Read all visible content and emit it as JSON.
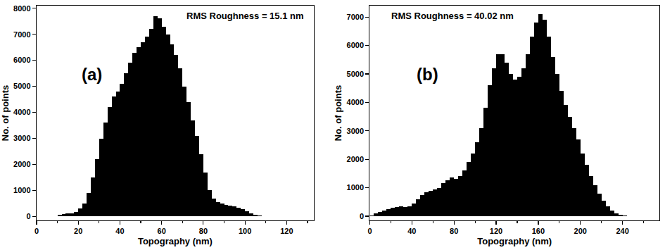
{
  "chart_data": [
    {
      "type": "histogram",
      "x_label": "Topography (nm)",
      "y_label": "No. of points",
      "annotations": [
        "(a)",
        "RMS Roughness = 15.1 nm"
      ],
      "color": "#000000",
      "bins": [
        0,
        2,
        4,
        6,
        8,
        10,
        12,
        14,
        16,
        18,
        20,
        22,
        24,
        26,
        28,
        30,
        32,
        34,
        36,
        38,
        40,
        42,
        44,
        46,
        48,
        50,
        52,
        54,
        56,
        58,
        60,
        62,
        64,
        66,
        68,
        70,
        72,
        74,
        76,
        78,
        80,
        82,
        84,
        86,
        88,
        90,
        92,
        94,
        96,
        98,
        100,
        102,
        104,
        106,
        108,
        110,
        112,
        114,
        116,
        118,
        120,
        122,
        124,
        126,
        128,
        130,
        132
      ],
      "counts": [
        0,
        0,
        0,
        5,
        20,
        60,
        90,
        110,
        130,
        180,
        300,
        500,
        900,
        1500,
        2200,
        3000,
        3600,
        4200,
        4600,
        4800,
        5100,
        5500,
        5900,
        6300,
        6500,
        6700,
        6900,
        7200,
        7700,
        7600,
        7300,
        7000,
        6600,
        6200,
        5700,
        5000,
        4400,
        3700,
        3100,
        2400,
        1700,
        1000,
        700,
        550,
        500,
        450,
        430,
        400,
        350,
        280,
        200,
        120,
        60,
        30,
        15,
        5,
        0,
        0,
        0,
        0,
        0,
        0,
        0,
        0,
        0,
        0
      ],
      "xlim": [
        0,
        133
      ],
      "xticks": [
        0,
        20,
        40,
        60,
        80,
        100,
        120
      ],
      "ylim": [
        -150,
        8100
      ],
      "yticks": [
        0,
        1000,
        2000,
        3000,
        4000,
        5000,
        6000,
        7000,
        8000
      ]
    },
    {
      "type": "histogram",
      "x_label": "Topography (nm)",
      "y_label": "No. of points",
      "annotations": [
        "(b)",
        "RMS Roughness = 40.02 nm"
      ],
      "color": "#000000",
      "bins": [
        0,
        4,
        8,
        12,
        16,
        20,
        24,
        28,
        32,
        36,
        40,
        44,
        48,
        52,
        56,
        60,
        64,
        68,
        72,
        76,
        80,
        84,
        88,
        92,
        96,
        100,
        104,
        108,
        112,
        116,
        120,
        124,
        128,
        132,
        136,
        140,
        144,
        148,
        152,
        156,
        160,
        164,
        168,
        172,
        176,
        180,
        184,
        188,
        192,
        196,
        200,
        204,
        208,
        212,
        216,
        220,
        224,
        228,
        232,
        236,
        240,
        244,
        248,
        252,
        256,
        260,
        264,
        268,
        272
      ],
      "counts": [
        30,
        100,
        150,
        200,
        250,
        300,
        330,
        350,
        330,
        350,
        450,
        600,
        750,
        850,
        900,
        950,
        1000,
        1150,
        1250,
        1350,
        1300,
        1400,
        1600,
        1900,
        2200,
        2600,
        3100,
        3800,
        4600,
        5200,
        5700,
        5700,
        5400,
        5000,
        4800,
        4900,
        5200,
        5700,
        6300,
        6800,
        7100,
        6900,
        6300,
        5600,
        5000,
        4400,
        3900,
        3500,
        3100,
        2700,
        2200,
        1800,
        1400,
        1100,
        800,
        550,
        350,
        200,
        100,
        50,
        25,
        10,
        0,
        0,
        0,
        0,
        0,
        0
      ],
      "xlim": [
        0,
        275
      ],
      "xticks": [
        0,
        40,
        80,
        120,
        160,
        200,
        240
      ],
      "ylim": [
        -150,
        7400
      ],
      "yticks": [
        0,
        1000,
        2000,
        3000,
        4000,
        5000,
        6000,
        7000
      ]
    }
  ]
}
